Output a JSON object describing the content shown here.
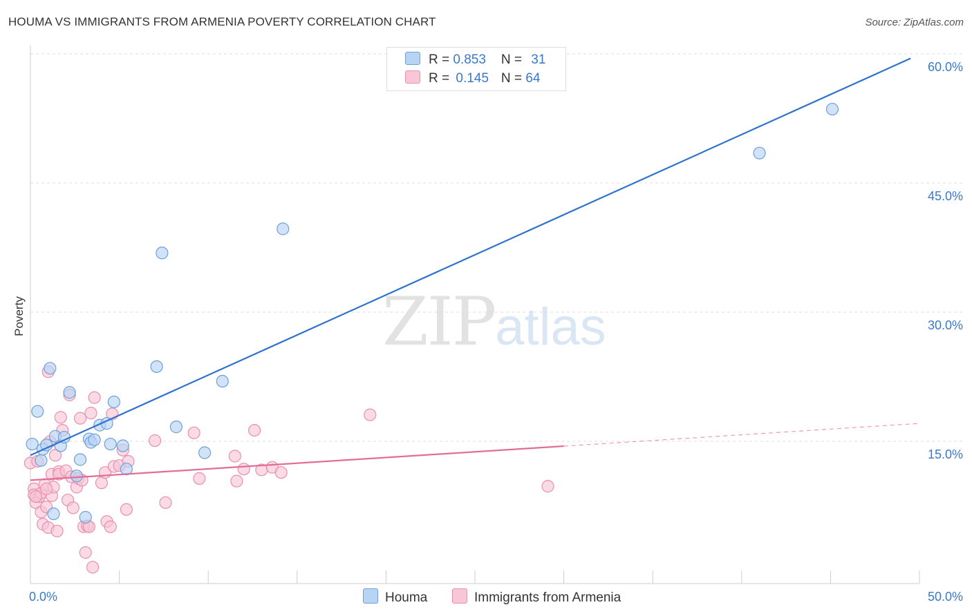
{
  "title": "HOUMA VS IMMIGRANTS FROM ARMENIA POVERTY CORRELATION CHART",
  "source": "Source: ZipAtlas.com",
  "legend": {
    "series1": {
      "r_label": "R = ",
      "r_value": "0.853",
      "n_label": "N = ",
      "n_value": "31"
    },
    "series2": {
      "r_label": "R = ",
      "r_value": "0.145",
      "n_label": "N = ",
      "n_value": "64"
    }
  },
  "watermark": {
    "zip": "ZIP",
    "atlas": "atlas"
  },
  "colors": {
    "houma_fill": "#b8d4f5",
    "houma_stroke": "#6f9fd8",
    "houma_line": "#2d72cc",
    "armenia_fill": "#f8c6d6",
    "armenia_stroke": "#ea8fae",
    "armenia_line": "#e36d97",
    "tick_label": "#3a78c9",
    "grid": "#dddddd"
  },
  "chart_data": {
    "type": "scatter",
    "title": "HOUMA VS IMMIGRANTS FROM ARMENIA POVERTY CORRELATION CHART",
    "xlabel": "",
    "ylabel": "Poverty",
    "xlim": [
      0,
      50
    ],
    "ylim": [
      0,
      60
    ],
    "x_tick_labels": [
      {
        "value": 0,
        "label": "0.0%"
      },
      {
        "value": 50,
        "label": "50.0%"
      }
    ],
    "y_tick_labels": [
      {
        "value": 15,
        "label": "15.0%"
      },
      {
        "value": 30,
        "label": "30.0%"
      },
      {
        "value": 45,
        "label": "45.0%"
      },
      {
        "value": 60,
        "label": "60.0%"
      }
    ],
    "series": [
      {
        "name": "Houma",
        "r": 0.853,
        "n": 31,
        "trend": {
          "x0": 0,
          "y0": 14.9,
          "x1": 49.5,
          "y1": 61.0,
          "dashed_from": null
        },
        "points": [
          [
            0.1,
            16.2
          ],
          [
            0.4,
            20.0
          ],
          [
            0.6,
            14.3
          ],
          [
            0.7,
            15.6
          ],
          [
            0.9,
            16.1
          ],
          [
            1.1,
            25.0
          ],
          [
            1.3,
            8.1
          ],
          [
            1.4,
            17.1
          ],
          [
            1.7,
            16.0
          ],
          [
            1.9,
            17.0
          ],
          [
            2.2,
            22.2
          ],
          [
            2.6,
            12.5
          ],
          [
            2.8,
            14.4
          ],
          [
            3.1,
            7.7
          ],
          [
            3.3,
            16.8
          ],
          [
            3.4,
            16.4
          ],
          [
            3.6,
            16.7
          ],
          [
            3.9,
            18.4
          ],
          [
            4.3,
            18.6
          ],
          [
            4.5,
            16.2
          ],
          [
            4.7,
            21.1
          ],
          [
            5.2,
            16.0
          ],
          [
            5.4,
            13.3
          ],
          [
            7.1,
            25.2
          ],
          [
            7.4,
            38.4
          ],
          [
            8.2,
            18.2
          ],
          [
            9.8,
            15.2
          ],
          [
            10.8,
            23.5
          ],
          [
            14.2,
            41.2
          ],
          [
            41.0,
            50.0
          ],
          [
            45.1,
            55.1
          ]
        ]
      },
      {
        "name": "Immigrants from Armenia",
        "r": 0.145,
        "n": 64,
        "trend": {
          "x0": 0,
          "y0": 12.0,
          "x1": 50,
          "y1": 18.6,
          "dashed_from": 30
        },
        "points": [
          [
            0.0,
            14.0
          ],
          [
            0.2,
            11.0
          ],
          [
            0.2,
            10.3
          ],
          [
            0.3,
            9.4
          ],
          [
            0.4,
            14.2
          ],
          [
            0.5,
            10.1
          ],
          [
            0.6,
            10.5
          ],
          [
            0.6,
            8.3
          ],
          [
            0.7,
            6.9
          ],
          [
            0.8,
            11.5
          ],
          [
            0.9,
            8.9
          ],
          [
            1.0,
            24.6
          ],
          [
            1.0,
            6.5
          ],
          [
            1.1,
            16.5
          ],
          [
            1.2,
            10.2
          ],
          [
            1.2,
            12.7
          ],
          [
            1.3,
            11.2
          ],
          [
            1.4,
            14.9
          ],
          [
            1.5,
            6.1
          ],
          [
            1.6,
            13.0
          ],
          [
            1.6,
            12.7
          ],
          [
            1.7,
            19.3
          ],
          [
            1.8,
            17.8
          ],
          [
            2.0,
            13.1
          ],
          [
            2.1,
            9.7
          ],
          [
            2.2,
            21.9
          ],
          [
            2.3,
            12.4
          ],
          [
            2.4,
            8.8
          ],
          [
            2.6,
            11.2
          ],
          [
            2.7,
            12.2
          ],
          [
            2.8,
            19.2
          ],
          [
            2.9,
            12.0
          ],
          [
            3.0,
            6.6
          ],
          [
            3.1,
            3.6
          ],
          [
            3.2,
            6.7
          ],
          [
            3.3,
            6.6
          ],
          [
            3.4,
            19.8
          ],
          [
            3.5,
            1.9
          ],
          [
            3.6,
            21.6
          ],
          [
            4.0,
            11.7
          ],
          [
            4.2,
            12.9
          ],
          [
            4.3,
            7.2
          ],
          [
            4.5,
            6.6
          ],
          [
            4.6,
            19.7
          ],
          [
            4.7,
            13.6
          ],
          [
            5.0,
            13.7
          ],
          [
            5.2,
            15.5
          ],
          [
            5.4,
            8.6
          ],
          [
            5.5,
            14.2
          ],
          [
            7.0,
            16.6
          ],
          [
            7.6,
            9.4
          ],
          [
            9.2,
            17.5
          ],
          [
            9.5,
            12.2
          ],
          [
            11.5,
            14.8
          ],
          [
            11.6,
            11.9
          ],
          [
            12.0,
            13.3
          ],
          [
            12.6,
            17.8
          ],
          [
            13.0,
            13.2
          ],
          [
            13.6,
            13.5
          ],
          [
            14.1,
            12.9
          ],
          [
            19.1,
            19.6
          ],
          [
            29.1,
            11.3
          ],
          [
            0.3,
            10.1
          ],
          [
            0.9,
            11.0
          ]
        ]
      }
    ],
    "legend": [
      {
        "name": "Houma",
        "label": "Houma"
      },
      {
        "name": "Immigrants from Armenia",
        "label": "Immigrants from Armenia"
      }
    ],
    "grid": true,
    "legend_position": "top-center"
  }
}
